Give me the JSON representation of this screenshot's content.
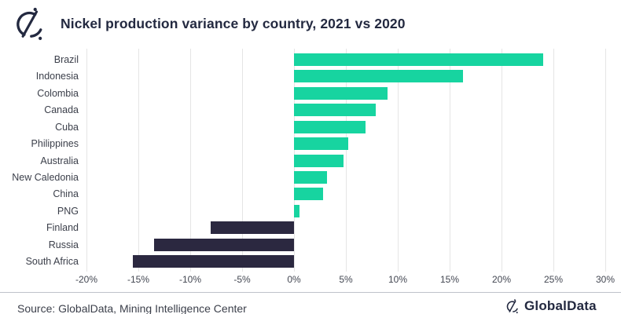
{
  "header": {
    "title": "Nickel production variance by country, 2021 vs 2020",
    "logo_icon": "globaldata-mark-icon"
  },
  "chart_data": {
    "type": "bar",
    "orientation": "horizontal",
    "title": "Nickel production variance by country, 2021 vs 2020",
    "categories": [
      "Brazil",
      "Indonesia",
      "Colombia",
      "Canada",
      "Cuba",
      "Philippines",
      "Australia",
      "New Caledonia",
      "China",
      "PNG",
      "Finland",
      "Russia",
      "South Africa"
    ],
    "values": [
      24,
      16.3,
      9,
      7.9,
      6.9,
      5.2,
      4.8,
      3.2,
      2.8,
      0.5,
      -8,
      -13.5,
      -15.5
    ],
    "unit": "%",
    "xlim": [
      -20,
      30
    ],
    "x_tick_step": 5,
    "x_tick_labels": [
      "-20%",
      "-15%",
      "-10%",
      "-5%",
      "0%",
      "5%",
      "10%",
      "15%",
      "20%",
      "25%",
      "30%"
    ],
    "grid": "vertical",
    "legend": "none",
    "positive_color": "#17d4a0",
    "negative_color": "#2b2840"
  },
  "colors": {
    "accent_green": "#17d4a0",
    "dark_navy": "#2b2840",
    "title_text": "#232940",
    "grid": "#e5e5e5"
  },
  "footer": {
    "source": "Source: GlobalData, Mining Intelligence Center",
    "brand": "GlobalData",
    "brand_icon": "globaldata-mark-icon"
  }
}
